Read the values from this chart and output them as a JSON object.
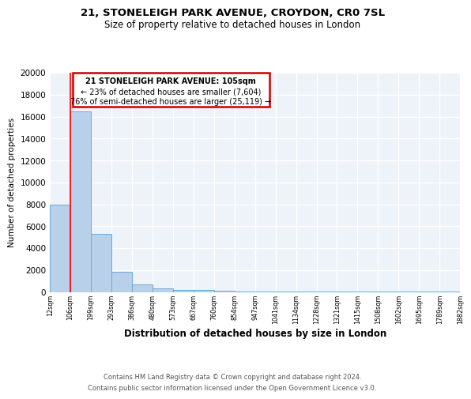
{
  "title1": "21, STONELEIGH PARK AVENUE, CROYDON, CR0 7SL",
  "title2": "Size of property relative to detached houses in London",
  "xlabel": "Distribution of detached houses by size in London",
  "ylabel": "Number of detached properties",
  "bar_values": [
    8000,
    16500,
    5300,
    1850,
    700,
    300,
    175,
    150,
    130,
    50,
    20,
    10,
    8,
    5,
    4,
    3,
    2,
    2,
    1,
    1
  ],
  "bin_labels": [
    "12sqm",
    "106sqm",
    "199sqm",
    "293sqm",
    "386sqm",
    "480sqm",
    "573sqm",
    "667sqm",
    "760sqm",
    "854sqm",
    "947sqm",
    "1041sqm",
    "1134sqm",
    "1228sqm",
    "1321sqm",
    "1415sqm",
    "1508sqm",
    "1602sqm",
    "1695sqm",
    "1789sqm",
    "1882sqm"
  ],
  "bar_color": "#b8d0ea",
  "bar_edge_color": "#6aaad4",
  "property_line_x": 1,
  "annotation_line1": "21 STONELEIGH PARK AVENUE: 105sqm",
  "annotation_line2": "← 23% of detached houses are smaller (7,604)",
  "annotation_line3": "76% of semi-detached houses are larger (25,119) →",
  "annotation_box_color": "#cc0000",
  "footnote1": "Contains HM Land Registry data © Crown copyright and database right 2024.",
  "footnote2": "Contains public sector information licensed under the Open Government Licence v3.0.",
  "ylim": [
    0,
    20000
  ],
  "yticks": [
    0,
    2000,
    4000,
    6000,
    8000,
    10000,
    12000,
    14000,
    16000,
    18000,
    20000
  ],
  "background_color": "#eef2f9",
  "grid_color": "#ffffff"
}
